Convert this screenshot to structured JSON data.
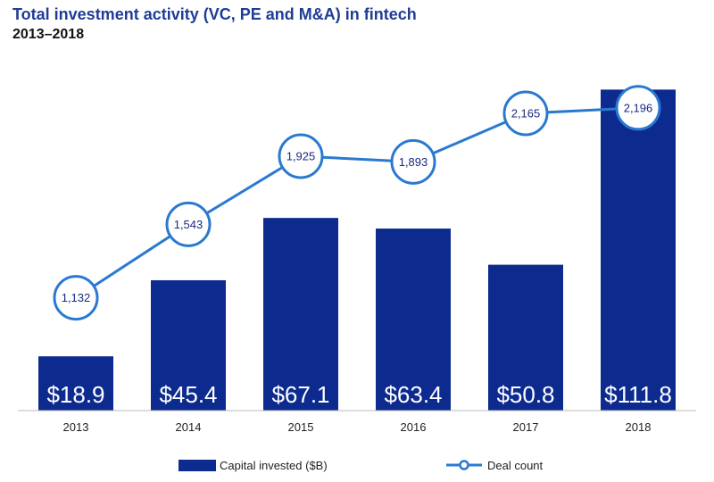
{
  "title": "Total investment activity (VC, PE and M&A) in fintech",
  "subtitle": "2013–2018",
  "colors": {
    "bar": "#0d2b8f",
    "line": "#2a79d1",
    "title": "#1f3c96"
  },
  "chart_data": {
    "type": "bar",
    "categories": [
      "2013",
      "2014",
      "2015",
      "2016",
      "2017",
      "2018"
    ],
    "series": [
      {
        "name": "Capital invested ($B)",
        "type": "bar",
        "values": [
          18.9,
          45.4,
          67.1,
          63.4,
          50.8,
          111.8
        ],
        "labels": [
          "$18.9",
          "$45.4",
          "$67.1",
          "$63.4",
          "$50.8",
          "$111.8"
        ]
      },
      {
        "name": "Deal count",
        "type": "line",
        "values": [
          1132,
          1543,
          1925,
          1893,
          2165,
          2196
        ],
        "labels": [
          "1,132",
          "1,543",
          "1,925",
          "1,893",
          "2,165",
          "2,196"
        ]
      }
    ],
    "legend": "bottom"
  }
}
